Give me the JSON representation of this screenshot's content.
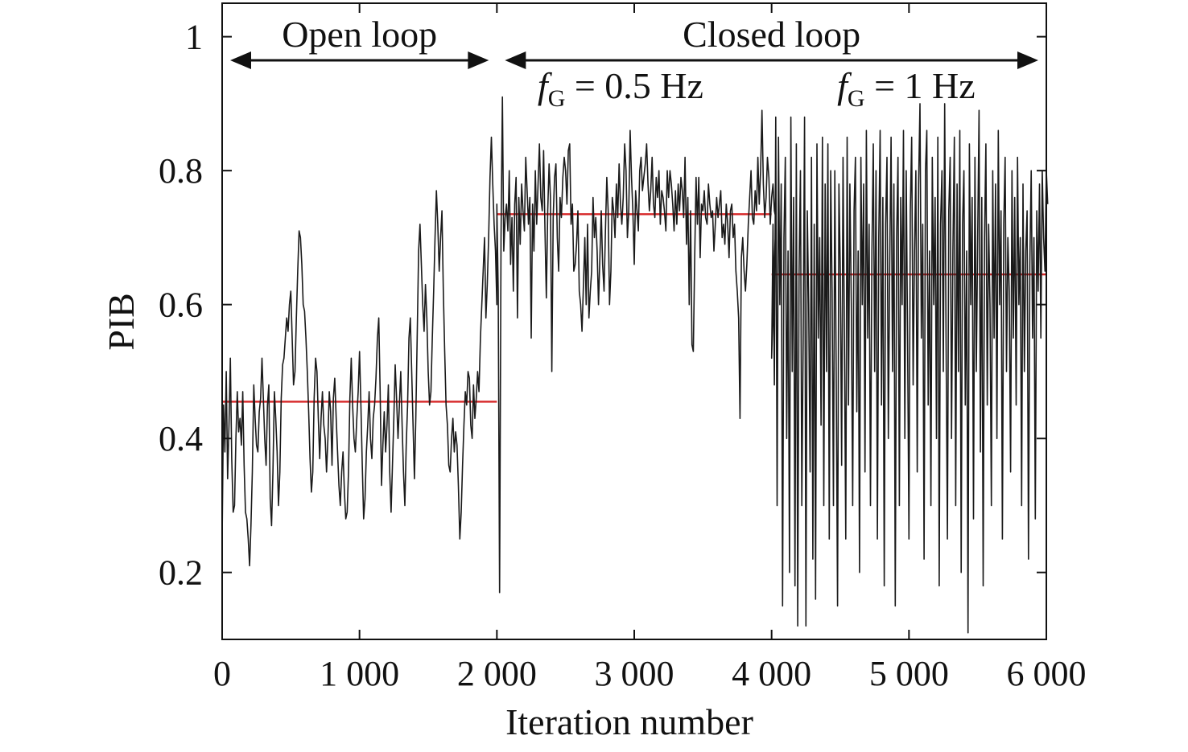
{
  "chart_data": {
    "type": "line",
    "title": "",
    "xlabel": "Iteration number",
    "ylabel": "PIB",
    "xlim": [
      0,
      6000
    ],
    "ylim": [
      0.1,
      1.05
    ],
    "xticks": [
      0,
      1000,
      2000,
      3000,
      4000,
      5000,
      6000
    ],
    "xtick_labels": [
      "0",
      "1 000",
      "2 000",
      "3 000",
      "4 000",
      "5 000",
      "6 000"
    ],
    "yticks": [
      0.2,
      0.4,
      0.6,
      0.8,
      1.0
    ],
    "ytick_labels": [
      "0.2",
      "0.4",
      "0.6",
      "0.8",
      "1"
    ],
    "grid": false,
    "legend": "none",
    "colors": {
      "trace": "#1a1a1a",
      "mean": "#d62728",
      "axis": "#111111"
    },
    "regions": [
      {
        "label": "Open loop",
        "x_start": 0,
        "x_end": 2000
      },
      {
        "label": "Closed loop",
        "x_start": 2000,
        "x_end": 6000
      }
    ],
    "sub_annotations": [
      {
        "var": "f",
        "sub": "G",
        "text": " = 0.5 Hz",
        "x_center": 2900
      },
      {
        "var": "f",
        "sub": "G",
        "text": " = 1 Hz",
        "x_center": 4980
      }
    ],
    "mean_lines": [
      {
        "x_start": 0,
        "x_end": 2000,
        "y": 0.455
      },
      {
        "x_start": 2000,
        "x_end": 4000,
        "y": 0.735
      },
      {
        "x_start": 4000,
        "x_end": 6000,
        "y": 0.645
      }
    ],
    "series": [
      {
        "segments": [
          {
            "x_start": 0,
            "x_end": 2000,
            "step": 10,
            "y": [
              0.25,
              0.45,
              0.38,
              0.5,
              0.34,
              0.42,
              0.52,
              0.37,
              0.29,
              0.3,
              0.4,
              0.47,
              0.41,
              0.43,
              0.39,
              0.47,
              0.36,
              0.29,
              0.28,
              0.25,
              0.21,
              0.27,
              0.35,
              0.48,
              0.43,
              0.39,
              0.38,
              0.44,
              0.46,
              0.52,
              0.46,
              0.4,
              0.36,
              0.45,
              0.48,
              0.31,
              0.27,
              0.35,
              0.47,
              0.43,
              0.38,
              0.3,
              0.35,
              0.46,
              0.51,
              0.52,
              0.55,
              0.58,
              0.56,
              0.6,
              0.62,
              0.55,
              0.48,
              0.5,
              0.58,
              0.65,
              0.71,
              0.7,
              0.66,
              0.6,
              0.59,
              0.55,
              0.5,
              0.44,
              0.37,
              0.32,
              0.35,
              0.46,
              0.52,
              0.5,
              0.43,
              0.37,
              0.43,
              0.47,
              0.42,
              0.4,
              0.35,
              0.4,
              0.47,
              0.44,
              0.36,
              0.46,
              0.49,
              0.43,
              0.38,
              0.33,
              0.3,
              0.35,
              0.38,
              0.32,
              0.28,
              0.29,
              0.35,
              0.46,
              0.52,
              0.45,
              0.4,
              0.38,
              0.43,
              0.47,
              0.53,
              0.45,
              0.36,
              0.28,
              0.31,
              0.38,
              0.42,
              0.47,
              0.4,
              0.37,
              0.43,
              0.45,
              0.49,
              0.55,
              0.58,
              0.47,
              0.33,
              0.39,
              0.44,
              0.38,
              0.42,
              0.48,
              0.35,
              0.29,
              0.36,
              0.43,
              0.51,
              0.46,
              0.4,
              0.45,
              0.5,
              0.42,
              0.35,
              0.3,
              0.39,
              0.45,
              0.55,
              0.58,
              0.5,
              0.42,
              0.34,
              0.43,
              0.55,
              0.68,
              0.72,
              0.66,
              0.6,
              0.56,
              0.63,
              0.58,
              0.5,
              0.45,
              0.47,
              0.55,
              0.62,
              0.7,
              0.77,
              0.72,
              0.65,
              0.7,
              0.74,
              0.62,
              0.53,
              0.45,
              0.42,
              0.36,
              0.35,
              0.4,
              0.43,
              0.38,
              0.41,
              0.39,
              0.33,
              0.25,
              0.29,
              0.36,
              0.42,
              0.47,
              0.45,
              0.5,
              0.49,
              0.42,
              0.4,
              0.48,
              0.43,
              0.46,
              0.5,
              0.47,
              0.55,
              0.6,
              0.65,
              0.7,
              0.58,
              0.63,
              0.7,
              0.79,
              0.85,
              0.78,
              0.72,
              0.68,
              0.6
            ]
          },
          {
            "x_start": 2000,
            "x_end": 4000,
            "step": 10,
            "y": [
              0.75,
              0.62,
              0.17,
              0.7,
              0.91,
              0.68,
              0.73,
              0.75,
              0.71,
              0.8,
              0.66,
              0.73,
              0.62,
              0.75,
              0.79,
              0.58,
              0.76,
              0.69,
              0.78,
              0.74,
              0.71,
              0.82,
              0.77,
              0.72,
              0.76,
              0.55,
              0.75,
              0.68,
              0.8,
              0.72,
              0.78,
              0.84,
              0.76,
              0.74,
              0.83,
              0.71,
              0.61,
              0.74,
              0.81,
              0.76,
              0.5,
              0.73,
              0.79,
              0.81,
              0.7,
              0.65,
              0.76,
              0.73,
              0.79,
              0.82,
              0.8,
              0.75,
              0.83,
              0.84,
              0.72,
              0.75,
              0.65,
              0.66,
              0.69,
              0.74,
              0.62,
              0.6,
              0.56,
              0.63,
              0.7,
              0.6,
              0.72,
              0.58,
              0.62,
              0.65,
              0.76,
              0.7,
              0.73,
              0.68,
              0.6,
              0.67,
              0.74,
              0.66,
              0.62,
              0.71,
              0.79,
              0.74,
              0.6,
              0.65,
              0.76,
              0.74,
              0.7,
              0.78,
              0.73,
              0.81,
              0.75,
              0.72,
              0.76,
              0.84,
              0.8,
              0.7,
              0.74,
              0.86,
              0.79,
              0.74,
              0.66,
              0.77,
              0.74,
              0.71,
              0.8,
              0.82,
              0.77,
              0.79,
              0.81,
              0.84,
              0.78,
              0.74,
              0.77,
              0.82,
              0.75,
              0.73,
              0.79,
              0.76,
              0.8,
              0.72,
              0.77,
              0.76,
              0.74,
              0.71,
              0.8,
              0.76,
              0.8,
              0.78,
              0.75,
              0.71,
              0.77,
              0.72,
              0.78,
              0.74,
              0.79,
              0.77,
              0.73,
              0.82,
              0.69,
              0.76,
              0.6,
              0.74,
              0.54,
              0.53,
              0.67,
              0.79,
              0.72,
              0.79,
              0.67,
              0.75,
              0.74,
              0.77,
              0.73,
              0.72,
              0.78,
              0.75,
              0.73,
              0.74,
              0.68,
              0.72,
              0.76,
              0.73,
              0.75,
              0.77,
              0.7,
              0.72,
              0.69,
              0.75,
              0.72,
              0.67,
              0.74,
              0.75,
              0.7,
              0.72,
              0.65,
              0.62,
              0.58,
              0.43,
              0.67,
              0.7,
              0.65,
              0.62,
              0.66,
              0.72,
              0.76,
              0.8,
              0.73,
              0.72,
              0.77,
              0.74,
              0.82,
              0.75,
              0.8,
              0.89,
              0.78,
              0.73,
              0.76,
              0.82,
              0.79,
              0.72,
              0.76,
              0.78,
              0.74,
              0.73
            ]
          },
          {
            "x_start": 4000,
            "x_end": 6000,
            "step": 10,
            "y": [
              0.52,
              0.72,
              0.48,
              0.88,
              0.3,
              0.85,
              0.6,
              0.78,
              0.15,
              0.7,
              0.82,
              0.4,
              0.68,
              0.2,
              0.88,
              0.5,
              0.76,
              0.18,
              0.84,
              0.12,
              0.65,
              0.8,
              0.3,
              0.55,
              0.88,
              0.12,
              0.74,
              0.6,
              0.35,
              0.82,
              0.22,
              0.72,
              0.16,
              0.84,
              0.55,
              0.7,
              0.42,
              0.85,
              0.3,
              0.78,
              0.5,
              0.84,
              0.25,
              0.8,
              0.62,
              0.3,
              0.8,
              0.5,
              0.15,
              0.78,
              0.65,
              0.36,
              0.82,
              0.55,
              0.25,
              0.85,
              0.45,
              0.78,
              0.6,
              0.3,
              0.74,
              0.82,
              0.44,
              0.68,
              0.2,
              0.82,
              0.6,
              0.78,
              0.35,
              0.86,
              0.55,
              0.72,
              0.3,
              0.68,
              0.84,
              0.5,
              0.8,
              0.25,
              0.7,
              0.86,
              0.45,
              0.76,
              0.18,
              0.72,
              0.82,
              0.4,
              0.66,
              0.85,
              0.5,
              0.78,
              0.15,
              0.7,
              0.82,
              0.3,
              0.76,
              0.6,
              0.86,
              0.4,
              0.8,
              0.55,
              0.25,
              0.74,
              0.85,
              0.48,
              0.68,
              0.8,
              0.35,
              0.78,
              0.9,
              0.55,
              0.72,
              0.22,
              0.8,
              0.86,
              0.45,
              0.68,
              0.3,
              0.82,
              0.6,
              0.76,
              0.4,
              0.85,
              0.18,
              0.72,
              0.8,
              0.5,
              0.9,
              0.55,
              0.25,
              0.74,
              0.82,
              0.4,
              0.68,
              0.85,
              0.3,
              0.78,
              0.5,
              0.86,
              0.2,
              0.72,
              0.8,
              0.45,
              0.68,
              0.11,
              0.84,
              0.6,
              0.76,
              0.28,
              0.82,
              0.5,
              0.7,
              0.89,
              0.38,
              0.76,
              0.18,
              0.7,
              0.84,
              0.45,
              0.72,
              0.6,
              0.3,
              0.8,
              0.55,
              0.78,
              0.4,
              0.86,
              0.6,
              0.74,
              0.25,
              0.72,
              0.82,
              0.5,
              0.7,
              0.62,
              0.35,
              0.8,
              0.55,
              0.76,
              0.45,
              0.82,
              0.6,
              0.7,
              0.3,
              0.78,
              0.5,
              0.68,
              0.74,
              0.22,
              0.66,
              0.8,
              0.55,
              0.7,
              0.28,
              0.74,
              0.62,
              0.78,
              0.55,
              0.8,
              0.7,
              0.65,
              0.8,
              0.75
            ]
          }
        ]
      }
    ]
  }
}
